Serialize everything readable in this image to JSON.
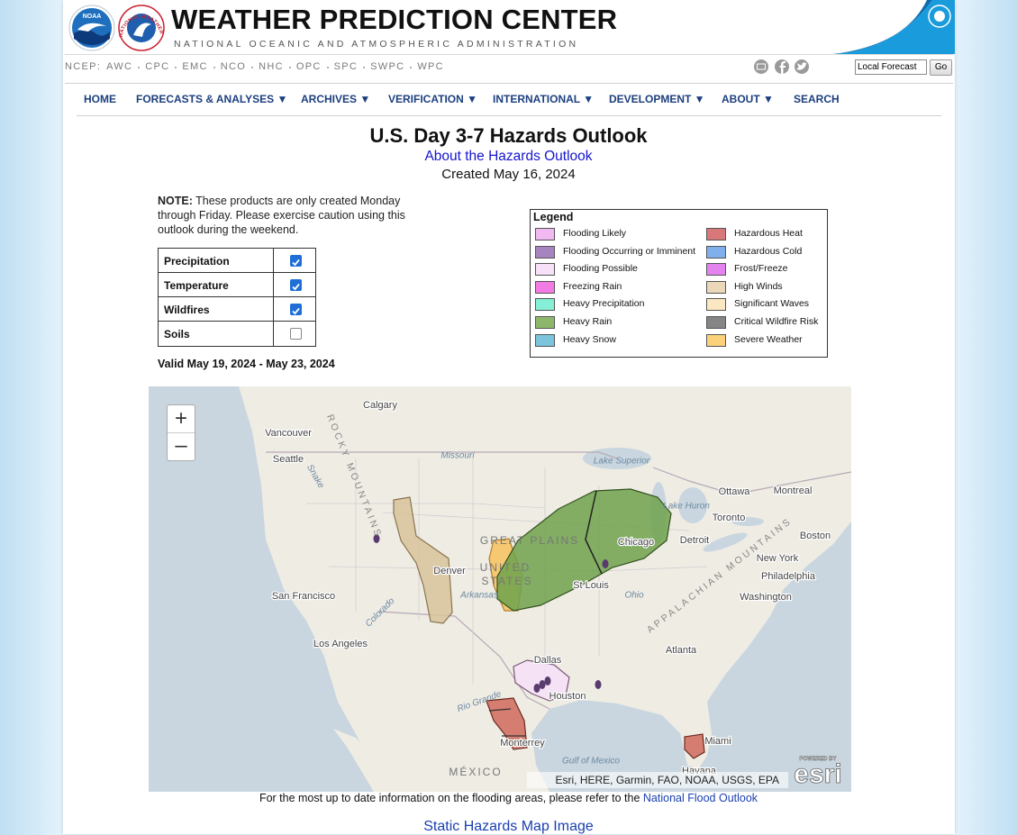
{
  "header": {
    "logos": [
      "NOAA",
      "NATIONAL WEATHER SERVICE"
    ],
    "title": "WEATHER PREDICTION CENTER",
    "subtitle": "NATIONAL OCEANIC AND ATMOSPHERIC ADMINISTRATION",
    "ncep_links": [
      "NCEP:",
      "AWC",
      "CPC",
      "EMC",
      "NCO",
      "NHC",
      "OPC",
      "SPC",
      "SWPC",
      "WPC"
    ],
    "search_value": "Local Forecast",
    "search_button": "Go"
  },
  "nav": [
    "HOME",
    "FORECASTS & ANALYSES ▼",
    "ARCHIVES ▼",
    "VERIFICATION ▼",
    "INTERNATIONAL ▼",
    "DEVELOPMENT ▼",
    "ABOUT ▼",
    "SEARCH"
  ],
  "content": {
    "title": "U.S. Day 3-7 Hazards Outlook",
    "about_link": "About the Hazards Outlook",
    "created": "Created May 16, 2024",
    "note": {
      "label": "NOTE:",
      "text": "These products are only created Monday through Friday. Please exercise caution using this outlook during the weekend."
    },
    "layers": [
      {
        "label": "Precipitation",
        "checked": true
      },
      {
        "label": "Temperature",
        "checked": true
      },
      {
        "label": "Wildfires",
        "checked": true
      },
      {
        "label": "Soils",
        "checked": false
      }
    ],
    "valid": "Valid May 19, 2024 - May 23, 2024",
    "legend": {
      "title": "Legend",
      "items": [
        {
          "label": "Flooding Likely",
          "color": "#f0b9f0"
        },
        {
          "label": "Flooding Occurring or Imminent",
          "color": "#a784bf"
        },
        {
          "label": "Flooding Possible",
          "color": "#f6e1f8"
        },
        {
          "label": "Freezing Rain",
          "color": "#f27ce3"
        },
        {
          "label": "Heavy Precipitation",
          "color": "#86f0d6"
        },
        {
          "label": "Heavy Rain",
          "color": "#8db86c"
        },
        {
          "label": "Heavy Snow",
          "color": "#7cc4dc"
        },
        {
          "label": "Hazardous Heat",
          "color": "#d9787a"
        },
        {
          "label": "Hazardous Cold",
          "color": "#7fb0ec"
        },
        {
          "label": "Frost/Freeze",
          "color": "#e384ee"
        },
        {
          "label": "High Winds",
          "color": "#ead8b8"
        },
        {
          "label": "Significant Waves",
          "color": "#fbe8c2"
        },
        {
          "label": "Critical Wildfire Risk",
          "color": "#858585"
        },
        {
          "label": "Severe Weather",
          "color": "#fbd27a"
        }
      ]
    },
    "map": {
      "zoom_in": "+",
      "zoom_out": "–",
      "labels": [
        "Calgary",
        "Vancouver",
        "Seattle",
        "Missouri",
        "Lake Superior",
        "Ottawa",
        "Montreal",
        "Lake Huron",
        "Toronto",
        "GREAT PLAINS",
        "Chicago",
        "Detroit",
        "Boston",
        "New York",
        "Philadelphia",
        "Denver",
        "UNITED",
        "STATES",
        "St Louis",
        "Ohio",
        "San Francisco",
        "Washington",
        "Arkansas",
        "Colorado",
        "Los Angeles",
        "Atlanta",
        "Dallas",
        "Houston",
        "Rio Grande",
        "Monterrey",
        "Miami",
        "Gulf of Mexico",
        "Havana",
        "MÉXICO",
        "ROCKY MOUNTAINS",
        "APPALACHIAN MOUNTAINS",
        "Snake"
      ],
      "attribution": "Esri, HERE, Garmin, FAO, NOAA, USGS, EPA",
      "esri_powered": "POWERED BY",
      "esri_logo": "esri"
    },
    "footer_text": "For the most up to date information on the flooding areas, please refer to the",
    "footer_link": "National Flood Outlook",
    "static_link": "Static Hazards Map Image"
  }
}
